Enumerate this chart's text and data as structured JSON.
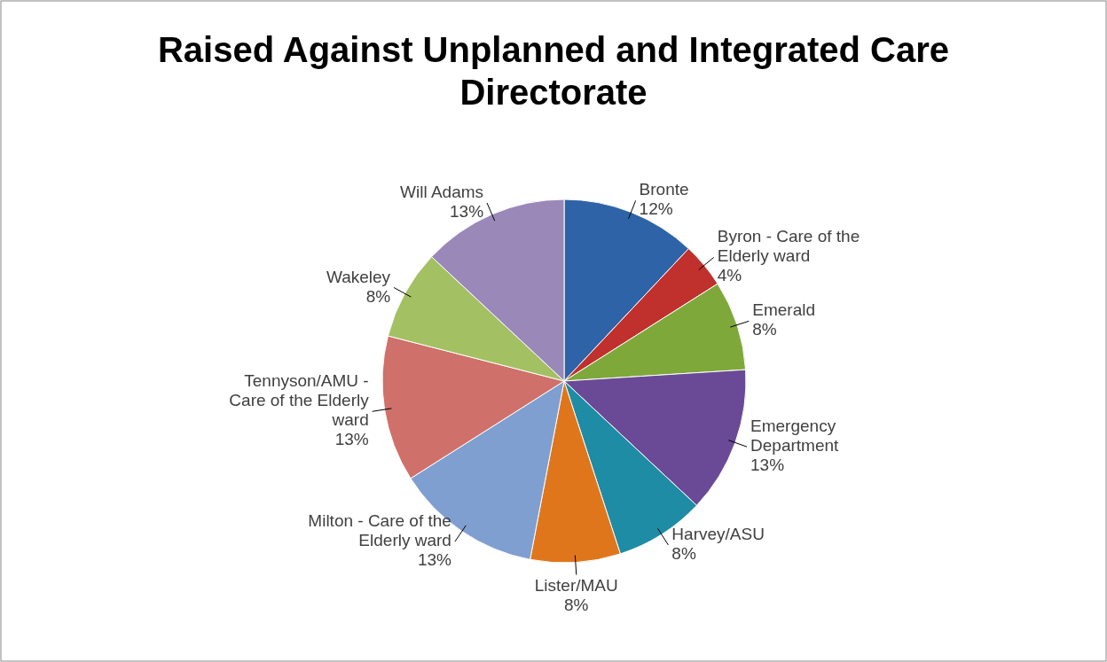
{
  "chart_data": {
    "type": "pie",
    "title": "Raised Against Unplanned and Integrated Care Directorate",
    "categories": [
      "Bronte",
      "Byron - Care of the Elderly ward",
      "Emerald",
      "Emergency Department",
      "Harvey/ASU",
      "Lister/MAU",
      "Milton - Care of the Elderly ward",
      "Tennyson/AMU - Care of the Elderly ward",
      "Wakeley",
      "Will Adams"
    ],
    "values": [
      12,
      4,
      8,
      13,
      8,
      8,
      13,
      13,
      8,
      13
    ],
    "value_labels": [
      "12%",
      "4%",
      "8%",
      "13%",
      "8%",
      "8%",
      "13%",
      "13%",
      "8%",
      "13%"
    ],
    "colors": [
      "#2e63a8",
      "#c0302c",
      "#7fa83a",
      "#6a4a96",
      "#1f8ca5",
      "#e0761c",
      "#7f9fd0",
      "#d0706b",
      "#a3c063",
      "#9a88b8"
    ],
    "legend": false
  }
}
